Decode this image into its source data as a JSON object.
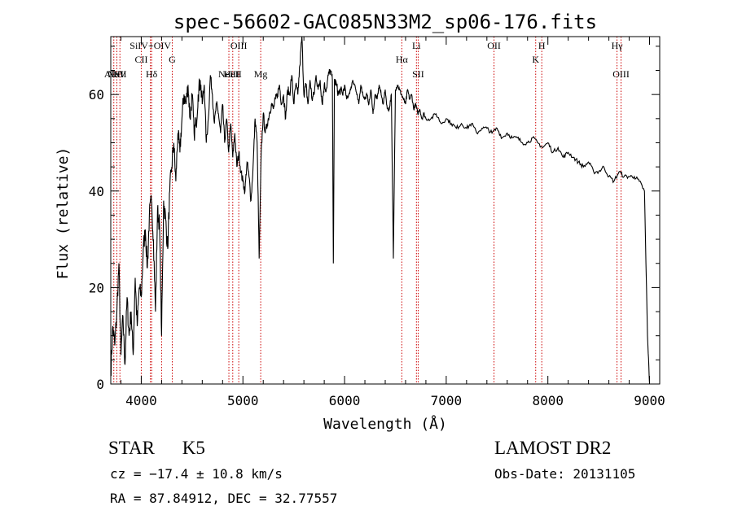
{
  "chart_data": {
    "type": "line",
    "title": "spec-56602-GAC085N33M2_sp06-176.fits",
    "xlabel": "Wavelength (Å)",
    "ylabel": "Flux (relative)",
    "xlim": [
      3700,
      9100
    ],
    "ylim": [
      0,
      72
    ],
    "xticks": [
      4000,
      5000,
      6000,
      7000,
      8000,
      9000
    ],
    "yticks": [
      0,
      20,
      40,
      60
    ],
    "line_color": "#000000",
    "marker_color": "#cc0000",
    "series": [
      {
        "x": [
          3700,
          3720,
          3740,
          3760,
          3780,
          3800,
          3820,
          3840,
          3860,
          3880,
          3900,
          3920,
          3940,
          3960,
          3980,
          4000,
          4020,
          4040,
          4060,
          4080,
          4100,
          4120,
          4140,
          4160,
          4180,
          4200,
          4220,
          4240,
          4260,
          4280,
          4300,
          4320,
          4340,
          4360,
          4380,
          4400,
          4420,
          4440,
          4460,
          4480,
          4500,
          4520,
          4540,
          4560,
          4580,
          4600,
          4620,
          4640,
          4660,
          4680,
          4700,
          4720,
          4740,
          4760,
          4780,
          4800,
          4820,
          4840,
          4860,
          4880,
          4900,
          4920,
          4940,
          4960,
          4980,
          5000,
          5020,
          5040,
          5060,
          5080,
          5100,
          5120,
          5140,
          5160,
          5180,
          5200,
          5220,
          5240,
          5260,
          5280,
          5300,
          5320,
          5340,
          5360,
          5380,
          5400,
          5420,
          5440,
          5460,
          5480,
          5500,
          5520,
          5540,
          5560,
          5580,
          5600,
          5620,
          5640,
          5660,
          5680,
          5700,
          5720,
          5740,
          5760,
          5780,
          5800,
          5820,
          5840,
          5860,
          5880,
          5890,
          5900,
          5920,
          5940,
          5960,
          5980,
          6000,
          6020,
          6040,
          6060,
          6080,
          6100,
          6120,
          6140,
          6160,
          6180,
          6200,
          6220,
          6240,
          6260,
          6280,
          6300,
          6320,
          6340,
          6360,
          6380,
          6400,
          6420,
          6440,
          6460,
          6480,
          6500,
          6520,
          6540,
          6560,
          6580,
          6600,
          6620,
          6640,
          6660,
          6680,
          6700,
          6720,
          6740,
          6760,
          6780,
          6800,
          6850,
          6900,
          6950,
          7000,
          7050,
          7100,
          7150,
          7200,
          7250,
          7300,
          7350,
          7400,
          7450,
          7500,
          7550,
          7600,
          7650,
          7700,
          7750,
          7800,
          7850,
          7900,
          7950,
          8000,
          8050,
          8100,
          8150,
          8200,
          8250,
          8300,
          8350,
          8400,
          8450,
          8500,
          8550,
          8600,
          8650,
          8700,
          8750,
          8800,
          8850,
          8900,
          8950,
          8980,
          9000
        ],
        "y": [
          2,
          12,
          8,
          15,
          25,
          6,
          14,
          4,
          18,
          10,
          15,
          6,
          22,
          12,
          20,
          18,
          28,
          32,
          24,
          35,
          38,
          30,
          15,
          36,
          33,
          10,
          38,
          34,
          28,
          40,
          45,
          50,
          42,
          52,
          48,
          55,
          60,
          58,
          62,
          55,
          60,
          52,
          54,
          60,
          63,
          58,
          62,
          50,
          55,
          64,
          60,
          54,
          58,
          56,
          52,
          58,
          50,
          55,
          48,
          54,
          47,
          52,
          45,
          48,
          44,
          42,
          40,
          46,
          43,
          38,
          45,
          55,
          50,
          26,
          48,
          56,
          52,
          54,
          56,
          58,
          57,
          59,
          60,
          62,
          58,
          60,
          55,
          61,
          60,
          64,
          58,
          62,
          60,
          66,
          72,
          60,
          62,
          58,
          63,
          59,
          60,
          64,
          61,
          63,
          58,
          62,
          61,
          64,
          65,
          63,
          25,
          63,
          62,
          60,
          61,
          60,
          62,
          59,
          60,
          61,
          63,
          62,
          60,
          58,
          62,
          60,
          59,
          60,
          58,
          61,
          56,
          60,
          59,
          62,
          60,
          58,
          61,
          57,
          57,
          60,
          26,
          61,
          62,
          61,
          60,
          59,
          58,
          61,
          59,
          60,
          57,
          58,
          56,
          57,
          55,
          56,
          55,
          55,
          56,
          54,
          55,
          54,
          53,
          54,
          53,
          54,
          52,
          53,
          53,
          52,
          53,
          51,
          52,
          51,
          51,
          50,
          50,
          51,
          50,
          49,
          50,
          48,
          49,
          47,
          48,
          47,
          46,
          45,
          46,
          44,
          44,
          45,
          43,
          42,
          44,
          43,
          43,
          43,
          42,
          40,
          10,
          0
        ]
      }
    ],
    "lines": [
      {
        "x": 3730,
        "label": "AlIII",
        "row": 0
      },
      {
        "x": 3760,
        "label": "NeV",
        "row": 0
      },
      {
        "x": 3790,
        "label": "NII",
        "row": 0
      },
      {
        "x": 4000,
        "label": "CII",
        "row": 1
      },
      {
        "x": 4090,
        "label": "SiIV+OIV",
        "row": 2
      },
      {
        "x": 4102,
        "label": "Hδ",
        "row": 0
      },
      {
        "x": 4200,
        "label": "",
        "row": 0
      },
      {
        "x": 4305,
        "label": "G",
        "row": 1
      },
      {
        "x": 4862,
        "label": "NeIII",
        "row": 0
      },
      {
        "x": 4900,
        "label": "HeII",
        "row": 0
      },
      {
        "x": 4959,
        "label": "OIII",
        "row": 2
      },
      {
        "x": 5175,
        "label": "Mg",
        "row": 0
      },
      {
        "x": 6563,
        "label": "Hα",
        "row": 1
      },
      {
        "x": 6707,
        "label": "Li",
        "row": 2
      },
      {
        "x": 6724,
        "label": "SII",
        "row": 0
      },
      {
        "x": 7470,
        "label": "OII",
        "row": 2
      },
      {
        "x": 7880,
        "label": "K",
        "row": 1
      },
      {
        "x": 7940,
        "label": "H",
        "row": 2
      },
      {
        "x": 8680,
        "label": "Hγ",
        "row": 2
      },
      {
        "x": 8720,
        "label": "OIII",
        "row": 0
      }
    ]
  },
  "info": {
    "class": "STAR",
    "subclass": "K5",
    "survey": "LAMOST DR2",
    "cz": "cz = −17.4 ± 10.8 km/s",
    "obs_date": "Obs-Date: 20131105",
    "coords": "RA =  87.84912, DEC =  32.77557"
  }
}
